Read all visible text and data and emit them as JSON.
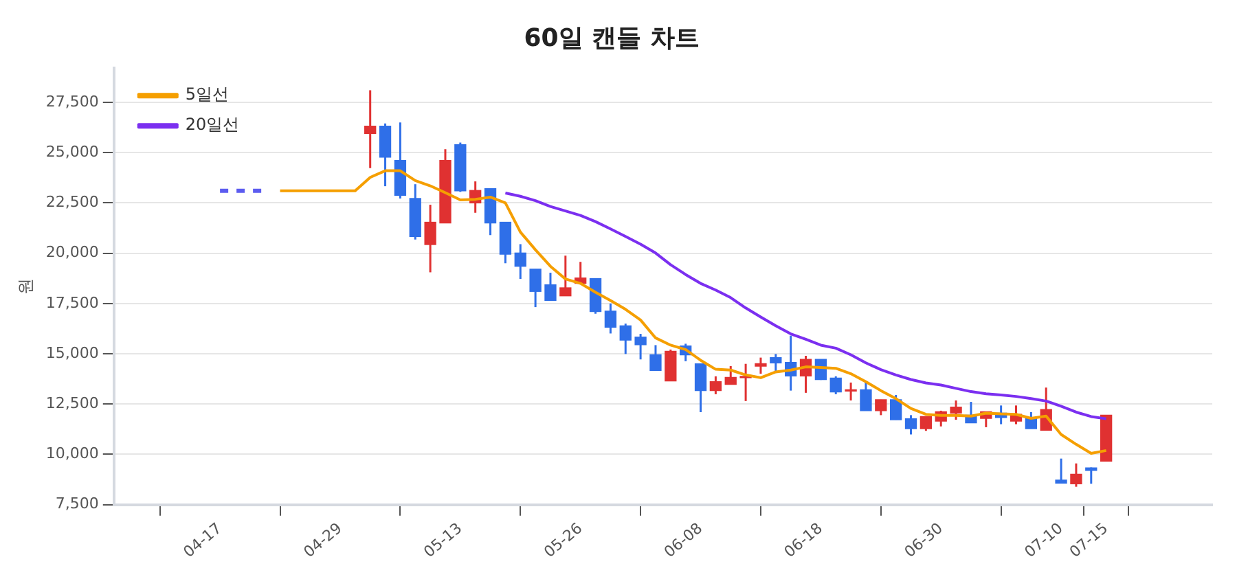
{
  "chart_data": {
    "type": "candlestick",
    "title": "60일 캔들 차트",
    "ylabel": "원",
    "categories": [
      "04-17",
      null,
      null,
      null,
      null,
      null,
      null,
      null,
      "04-29",
      null,
      null,
      null,
      null,
      null,
      null,
      null,
      "05-13",
      null,
      null,
      null,
      null,
      null,
      null,
      null,
      "05-26",
      null,
      null,
      null,
      null,
      null,
      null,
      null,
      "06-08",
      null,
      null,
      null,
      null,
      null,
      null,
      null,
      "06-18",
      null,
      null,
      null,
      null,
      null,
      null,
      null,
      "06-30",
      null,
      null,
      null,
      null,
      null,
      null,
      null,
      "07-10",
      null,
      null,
      "07-15"
    ],
    "ohlc": [
      null,
      null,
      null,
      null,
      null,
      null,
      null,
      null,
      null,
      null,
      [
        25950,
        28100,
        24230,
        26320
      ],
      [
        26320,
        26450,
        23330,
        24770
      ],
      [
        24610,
        26500,
        22720,
        22880
      ],
      [
        22720,
        23430,
        20680,
        20830
      ],
      [
        20430,
        22410,
        19050,
        21540
      ],
      [
        21500,
        25170,
        21500,
        24610
      ],
      [
        25390,
        25500,
        23050,
        23100
      ],
      [
        22500,
        23570,
        22010,
        23120
      ],
      [
        23210,
        23210,
        20900,
        21500
      ],
      [
        21540,
        21540,
        19500,
        19950
      ],
      [
        20010,
        20450,
        18720,
        19350
      ],
      [
        19210,
        19210,
        17320,
        18100
      ],
      [
        18430,
        19030,
        17650,
        17650
      ],
      [
        17880,
        19880,
        17880,
        18280
      ],
      [
        18500,
        19570,
        18500,
        18770
      ],
      [
        18740,
        18740,
        16990,
        17100
      ],
      [
        17120,
        17500,
        16010,
        16320
      ],
      [
        16390,
        16500,
        14990,
        15680
      ],
      [
        15830,
        15990,
        14720,
        15450
      ],
      [
        14950,
        15430,
        14170,
        14170
      ],
      [
        13650,
        15210,
        13650,
        15120
      ],
      [
        15390,
        15500,
        14630,
        14950
      ],
      [
        14500,
        14500,
        12100,
        13170
      ],
      [
        13170,
        13880,
        12990,
        13610
      ],
      [
        13480,
        14390,
        13480,
        13830
      ],
      [
        13810,
        14500,
        12650,
        13880
      ],
      [
        14380,
        14810,
        14010,
        14510
      ],
      [
        14810,
        14990,
        14050,
        14550
      ],
      [
        14570,
        15900,
        13170,
        13900
      ],
      [
        13900,
        14900,
        13060,
        14720
      ],
      [
        14720,
        14720,
        13700,
        13720
      ],
      [
        13790,
        13880,
        12990,
        13100
      ],
      [
        13150,
        13570,
        12680,
        13210
      ],
      [
        13210,
        13650,
        12170,
        12170
      ],
      [
        12170,
        12720,
        11950,
        12720
      ],
      [
        12720,
        12950,
        11720,
        11720
      ],
      [
        11770,
        11950,
        10990,
        11280
      ],
      [
        11280,
        11880,
        11170,
        11880
      ],
      [
        11650,
        12170,
        11390,
        12120
      ],
      [
        12050,
        12680,
        11720,
        12350
      ],
      [
        11950,
        12610,
        11570,
        11570
      ],
      [
        11790,
        12120,
        11350,
        12120
      ],
      [
        12050,
        12430,
        11500,
        11830
      ],
      [
        11650,
        12430,
        11500,
        11990
      ],
      [
        11830,
        12100,
        11280,
        11280
      ],
      [
        11200,
        13320,
        11200,
        12230
      ],
      [
        8720,
        9790,
        8570,
        8570
      ],
      [
        8540,
        9550,
        8390,
        9010
      ],
      [
        9330,
        9350,
        8540,
        9200
      ],
      [
        9660,
        11950,
        9660,
        11950
      ]
    ],
    "colors": [
      null,
      null,
      null,
      null,
      null,
      null,
      null,
      null,
      null,
      null,
      "#e03131",
      "#2f6fe8",
      "#2f6fe8",
      "#2f6fe8",
      "#e03131",
      "#e03131",
      "#2f6fe8",
      "#e03131",
      "#2f6fe8",
      "#2f6fe8",
      "#2f6fe8",
      "#2f6fe8",
      "#2f6fe8",
      "#e03131",
      "#e03131",
      "#2f6fe8",
      "#2f6fe8",
      "#2f6fe8",
      "#2f6fe8",
      "#2f6fe8",
      "#e03131",
      "#2f6fe8",
      "#2f6fe8",
      "#e03131",
      "#e03131",
      "#e03131",
      "#e03131",
      "#2f6fe8",
      "#2f6fe8",
      "#e03131",
      "#2f6fe8",
      "#2f6fe8",
      "#e03131",
      "#2f6fe8",
      "#e03131",
      "#2f6fe8",
      "#2f6fe8",
      "#e03131",
      "#e03131",
      "#e03131",
      "#2f6fe8",
      "#e03131",
      "#2f6fe8",
      "#e03131",
      "#2f6fe8",
      "#e03131",
      "#2f6fe8",
      "#e03131",
      "#2f6fe8",
      "#e03131"
    ],
    "series": [
      {
        "name": "5일선",
        "type": "line",
        "color": "#f59f00",
        "values": [
          null,
          null,
          null,
          null,
          23100,
          23100,
          23100,
          23100,
          23100,
          23100,
          23770,
          24100,
          24100,
          23610,
          23350,
          23010,
          22650,
          22680,
          22790,
          22500,
          21050,
          20170,
          19350,
          18720,
          18500,
          18060,
          17650,
          17210,
          16680,
          15790,
          15430,
          15210,
          14680,
          14230,
          14190,
          13950,
          13810,
          14100,
          14190,
          14350,
          14320,
          14280,
          14010,
          13610,
          13170,
          12770,
          12280,
          11990,
          11940,
          11940,
          11900,
          12050,
          12010,
          11990,
          11790,
          11900,
          10990,
          10500,
          10050,
          10190
        ]
      },
      {
        "name": "20일선",
        "type": "line",
        "color": "#7b2ff0",
        "values": [
          null,
          null,
          null,
          null,
          null,
          null,
          null,
          null,
          null,
          null,
          null,
          null,
          null,
          null,
          null,
          null,
          null,
          null,
          null,
          22990,
          22830,
          22610,
          22320,
          22100,
          21880,
          21570,
          21210,
          20830,
          20450,
          20010,
          19430,
          18940,
          18500,
          18170,
          17790,
          17280,
          16830,
          16390,
          15990,
          15720,
          15430,
          15280,
          14950,
          14550,
          14210,
          13950,
          13720,
          13550,
          13450,
          13280,
          13120,
          13010,
          12950,
          12880,
          12770,
          12650,
          12390,
          12100,
          11880,
          11770
        ]
      },
      {
        "type": "line",
        "color": "#5c5cf0",
        "line_style": "dashed",
        "values": [
          23100,
          23100,
          23100,
          23100,
          null,
          null,
          null,
          null,
          null,
          null,
          null,
          null,
          null,
          null,
          null,
          null,
          null,
          null,
          null,
          null,
          null,
          null,
          null,
          null,
          null,
          null,
          null,
          null,
          null,
          null,
          null,
          null,
          null,
          null,
          null,
          null,
          null,
          null,
          null,
          null,
          null,
          null,
          null,
          null,
          null,
          null,
          null,
          null,
          null,
          null,
          null,
          null,
          null,
          null,
          null,
          null,
          null,
          null,
          null,
          null
        ]
      }
    ],
    "ylim": [
      7500,
      29200
    ],
    "yticks": [
      {
        "value": 7500,
        "label": "7,500"
      },
      {
        "value": 10000,
        "label": "10,000"
      },
      {
        "value": 12500,
        "label": "12,500"
      },
      {
        "value": 15000,
        "label": "15,000"
      },
      {
        "value": 17500,
        "label": "17,500"
      },
      {
        "value": 20000,
        "label": "20,000"
      },
      {
        "value": 22500,
        "label": "22,500"
      },
      {
        "value": 25000,
        "label": "25,000"
      },
      {
        "value": 27500,
        "label": "27,500"
      }
    ],
    "grid": "y",
    "legend": "top left"
  }
}
